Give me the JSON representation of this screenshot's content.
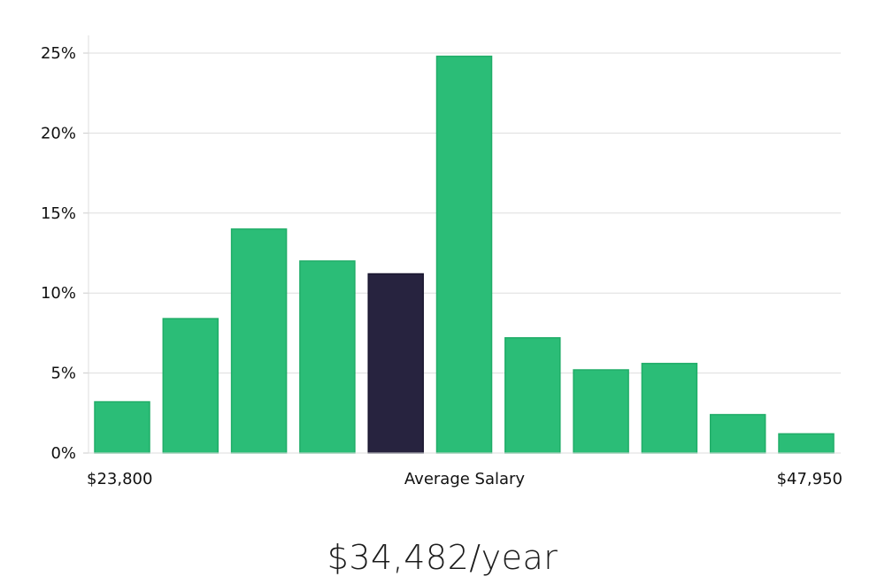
{
  "chart_data": {
    "type": "bar",
    "title": "",
    "ylabel": "",
    "xlabel": "Average Salary",
    "x_min_label": "$23,800",
    "x_max_label": "$47,950",
    "ylim": [
      0,
      26
    ],
    "yticks": [
      {
        "value": 0,
        "label": "0%"
      },
      {
        "value": 5,
        "label": "5%"
      },
      {
        "value": 10,
        "label": "10%"
      },
      {
        "value": 15,
        "label": "15%"
      },
      {
        "value": 20,
        "label": "20%"
      },
      {
        "value": 25,
        "label": "25%"
      }
    ],
    "values": [
      3.2,
      8.4,
      14.0,
      12.0,
      11.2,
      24.8,
      7.2,
      5.2,
      5.6,
      2.4,
      1.2
    ],
    "highlight_index": 4,
    "colors": {
      "bar": "#2bbd77",
      "bar_stroke": "#20ad68",
      "highlight": "#27233f",
      "grid": "#dddddd",
      "axis": "#dddddd"
    }
  },
  "summary": {
    "salary_text": "$34,482/year"
  }
}
